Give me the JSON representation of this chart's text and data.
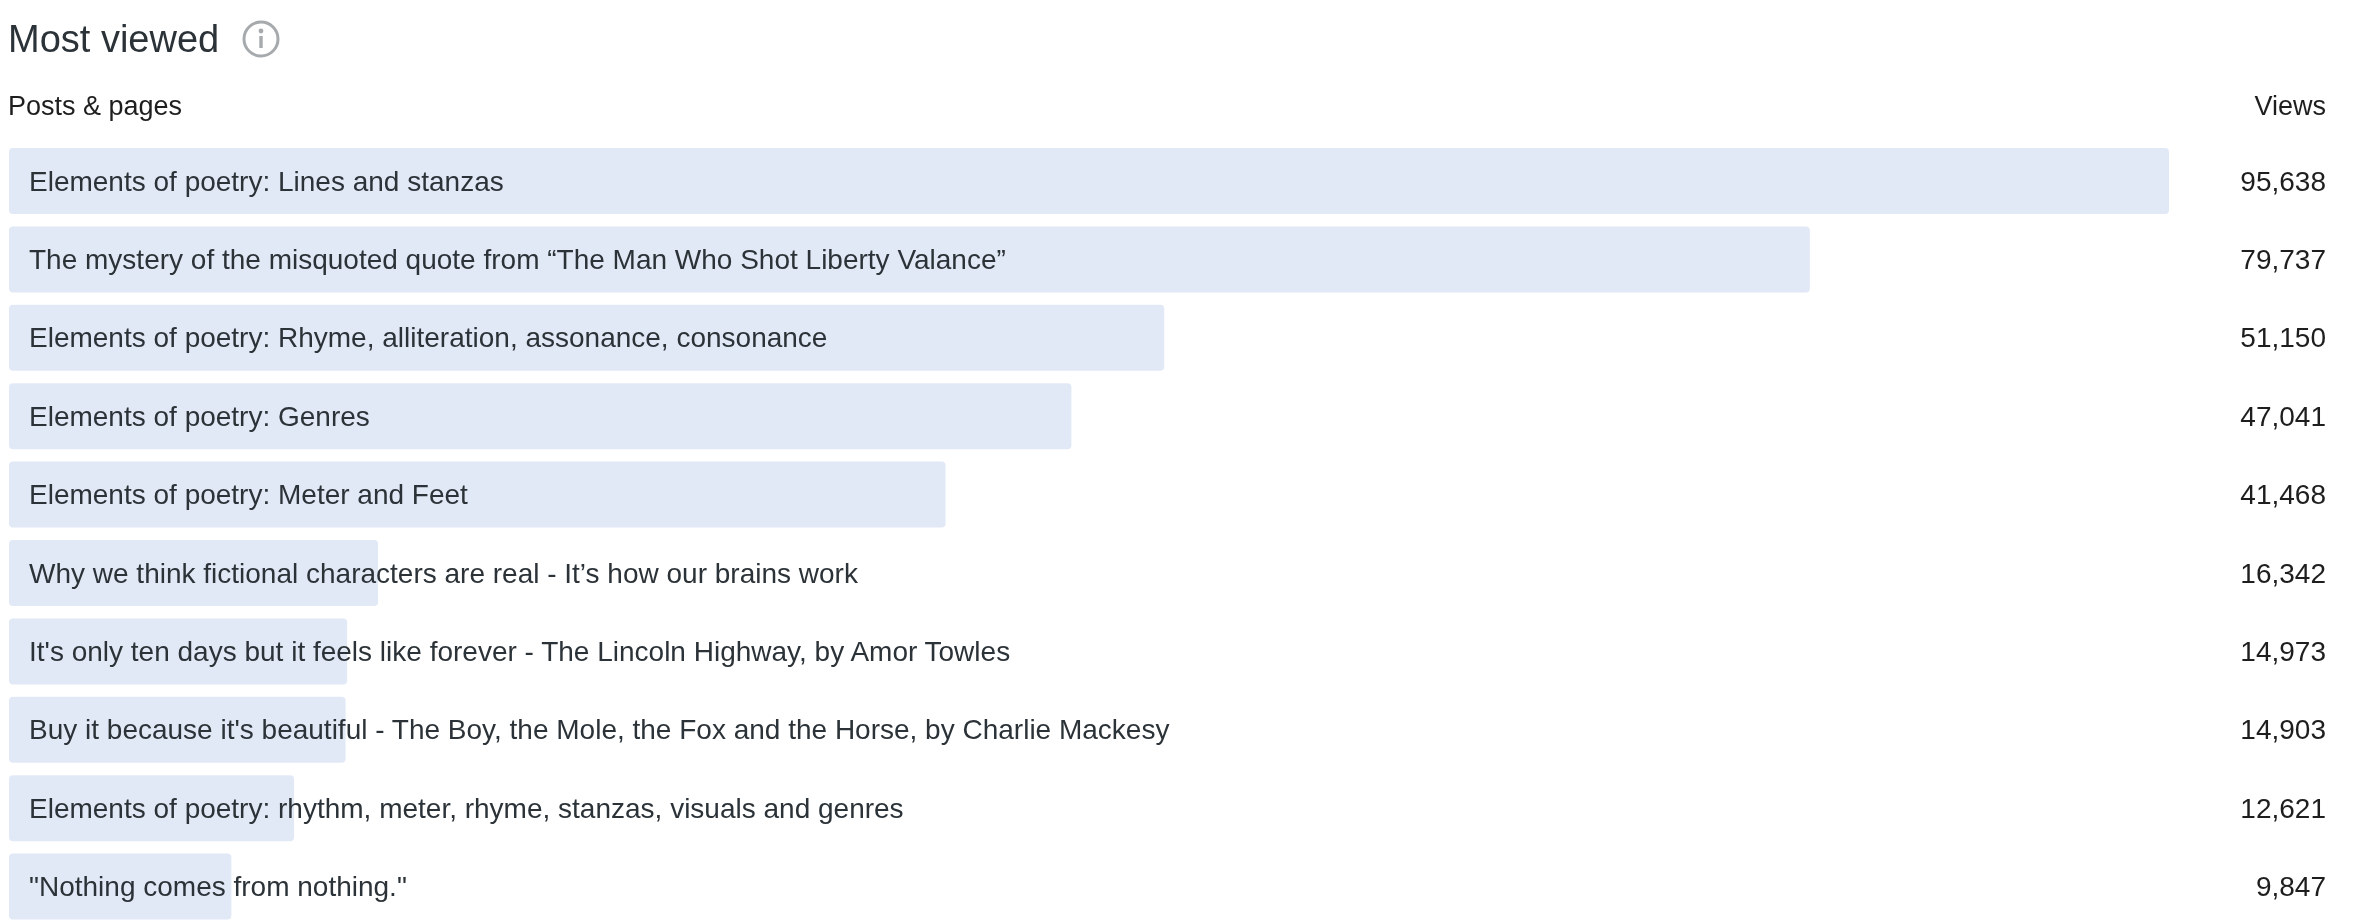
{
  "chart_data": {
    "type": "bar",
    "orientation": "horizontal",
    "title": "Most viewed",
    "ylabel": "Posts & pages",
    "xlabel": "Views",
    "color": "#e2e9f6",
    "categories": [
      "Elements of poetry: Lines and stanzas",
      "The mystery of the misquoted quote from “The Man Who Shot Liberty Valance”",
      "Elements of poetry: Rhyme, alliteration, assonance, consonance",
      "Elements of poetry: Genres",
      "Elements of poetry: Meter and Feet",
      "Why we think fictional characters are real - It’s how our brains work",
      "It's only ten days but it feels like forever - The Lincoln Highway, by Amor Towles",
      "Buy it because it's beautiful - The Boy, the Mole, the Fox and the Horse, by Charlie Mackesy",
      "Elements of poetry: rhythm, meter, rhyme, stanzas, visuals and genres",
      "\"Nothing comes from nothing.\""
    ],
    "values": [
      95638,
      79737,
      51150,
      47041,
      41468,
      16342,
      14973,
      14903,
      12621,
      9847
    ],
    "value_labels": [
      "95,638",
      "79,737",
      "51,150",
      "47,041",
      "41,468",
      "16,342",
      "14,973",
      "14,903",
      "12,621",
      "9,847"
    ],
    "grid": false,
    "legend": false
  }
}
